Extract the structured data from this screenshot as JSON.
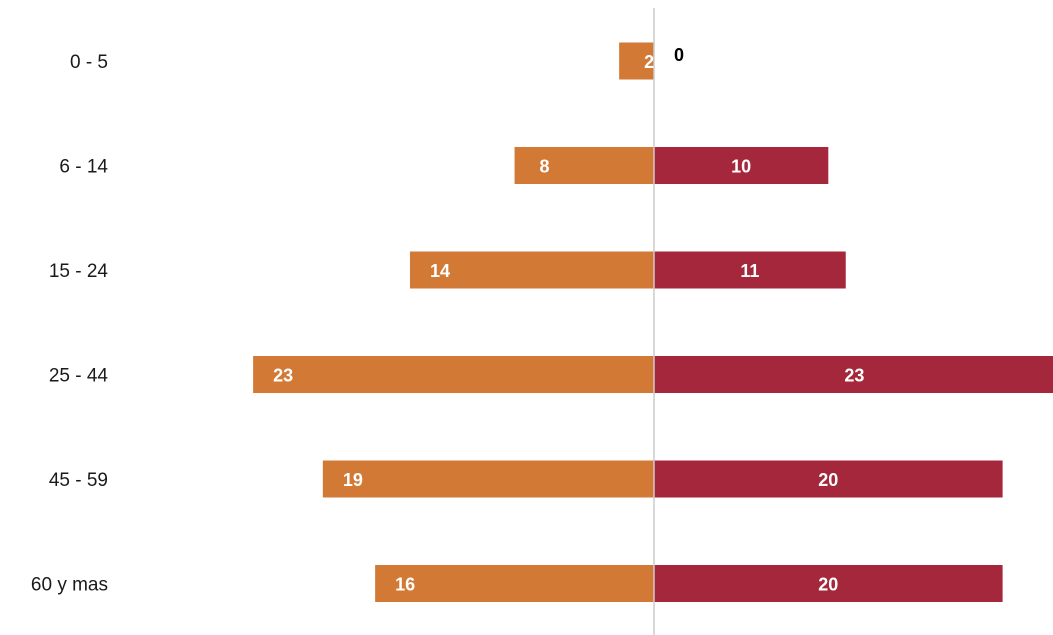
{
  "chart_data": {
    "type": "bar",
    "orientation": "horizontal",
    "layout": "diverging",
    "categories": [
      "0 - 5",
      "6 - 14",
      "15 - 24",
      "25 - 44",
      "45 - 59",
      "60 y mas"
    ],
    "series": [
      {
        "side": "left",
        "values": [
          2,
          8,
          14,
          23,
          19,
          16
        ],
        "color": "#d27a35"
      },
      {
        "side": "right",
        "values": [
          0,
          10,
          11,
          23,
          20,
          20
        ],
        "color": "#a5273c"
      }
    ],
    "legend": "none",
    "grid": false,
    "label_color_inside": "#ffffff",
    "label_color_outside": "#000000",
    "axis_color": "#cccccc"
  }
}
